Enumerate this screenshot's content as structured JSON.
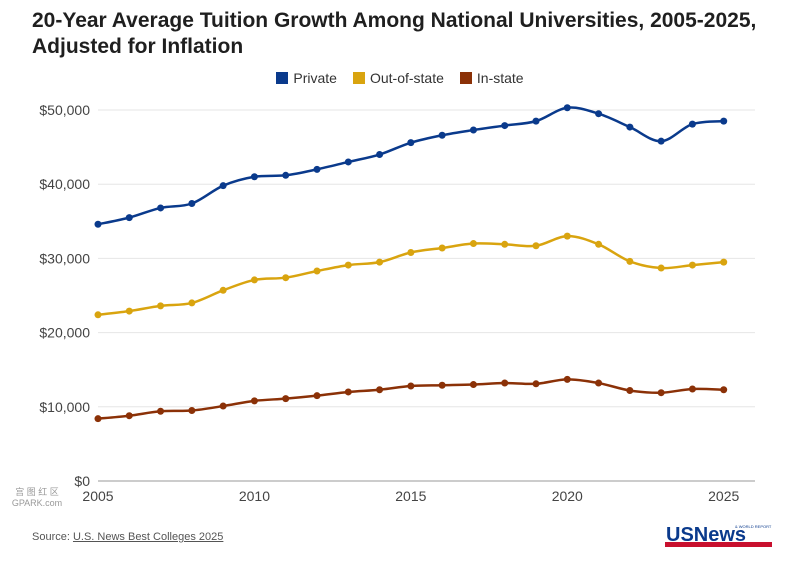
{
  "title": "20-Year Average Tuition Growth Among National Universities, 2005-2025, Adjusted for Inflation",
  "source": {
    "label": "Source: ",
    "link_text": "U.S. News Best Colleges 2025"
  },
  "watermark": {
    "line1": "宫 图 红 区",
    "line2": "GPARK.com"
  },
  "logo": {
    "main": "USNews",
    "small": "& WORLD REPORT"
  },
  "colors": {
    "private": "#0a3a8c",
    "out_of_state": "#d9a40f",
    "in_state": "#8b3107",
    "grid": "#e6e6e6"
  },
  "chart_data": {
    "type": "line",
    "title": "20-Year Average Tuition Growth Among National Universities, 2005-2025, Adjusted for Inflation",
    "xlabel": "",
    "ylabel": "",
    "x": [
      2005,
      2006,
      2007,
      2008,
      2009,
      2010,
      2011,
      2012,
      2013,
      2014,
      2015,
      2016,
      2017,
      2018,
      2019,
      2020,
      2021,
      2022,
      2023,
      2024,
      2025
    ],
    "xlim": [
      2005,
      2026
    ],
    "ylim": [
      0,
      50000
    ],
    "x_ticks": [
      2005,
      2010,
      2015,
      2020,
      2025
    ],
    "y_ticks": [
      0,
      10000,
      20000,
      30000,
      40000,
      50000
    ],
    "y_tick_labels": [
      "$0",
      "$10,000",
      "$20,000",
      "$30,000",
      "$40,000",
      "$50,000"
    ],
    "grid": true,
    "legend": "top-center",
    "series": [
      {
        "name": "Private",
        "color": "#0a3a8c",
        "values": [
          34600,
          35500,
          36800,
          37400,
          39800,
          41000,
          41200,
          42000,
          43000,
          44000,
          45600,
          46600,
          47300,
          47900,
          48500,
          50300,
          49500,
          47700,
          45800,
          48100,
          48500
        ]
      },
      {
        "name": "Out-of-state",
        "color": "#d9a40f",
        "values": [
          22400,
          22900,
          23600,
          24000,
          25700,
          27100,
          27400,
          28300,
          29100,
          29500,
          30800,
          31400,
          32000,
          31900,
          31700,
          33000,
          31900,
          29600,
          28700,
          29100,
          29500
        ]
      },
      {
        "name": "In-state",
        "color": "#8b3107",
        "values": [
          8400,
          8800,
          9400,
          9500,
          10100,
          10800,
          11100,
          11500,
          12000,
          12300,
          12800,
          12900,
          13000,
          13200,
          13100,
          13700,
          13200,
          12200,
          11900,
          12400,
          12300
        ]
      }
    ]
  }
}
